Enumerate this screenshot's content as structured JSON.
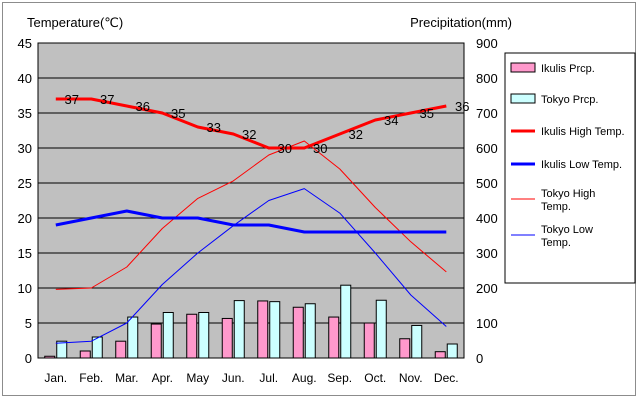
{
  "chart_data": {
    "type": "bar+line",
    "categories": [
      "Jan.",
      "Feb.",
      "Mar.",
      "Apr.",
      "May",
      "Jun.",
      "Jul.",
      "Aug.",
      "Sep.",
      "Oct.",
      "Nov.",
      "Dec."
    ],
    "left_axis": {
      "label": "Temperature(℃)",
      "range": [
        0,
        45
      ],
      "ticks": [
        0,
        5,
        10,
        15,
        20,
        25,
        30,
        35,
        40,
        45
      ]
    },
    "right_axis": {
      "label": "Precipitation(mm)",
      "range": [
        0,
        900
      ],
      "ticks": [
        0,
        100,
        200,
        300,
        400,
        500,
        600,
        700,
        800,
        900
      ]
    },
    "grid": true,
    "legend_position": "right",
    "bar_series": [
      {
        "name": "Ikulis Prcp.",
        "color": "#ff99cc",
        "values": [
          5,
          20,
          48,
          97,
          125,
          113,
          163,
          145,
          117,
          100,
          55,
          18
        ]
      },
      {
        "name": "Tokyo Prcp.",
        "color": "#ccffff",
        "values": [
          48,
          60,
          117,
          130,
          130,
          164,
          161,
          155,
          208,
          165,
          93,
          40
        ]
      }
    ],
    "line_series": [
      {
        "name": "Ikulis High Temp.",
        "color": "#ff0000",
        "width": "thick",
        "values": [
          37,
          37,
          36,
          35,
          33,
          32,
          30,
          30,
          32,
          34,
          35,
          36
        ],
        "labels": [
          "37",
          "37",
          "36",
          "35",
          "33",
          "32",
          "30",
          "30",
          "32",
          "34",
          "35",
          "36"
        ]
      },
      {
        "name": "Ikulis Low Temp.",
        "color": "#0000ff",
        "width": "thick",
        "values": [
          19,
          20,
          21,
          20,
          20,
          19,
          19,
          18,
          18,
          18,
          18,
          18
        ]
      },
      {
        "name": "Tokyo High Temp.",
        "color": "#ff0000",
        "width": "thin",
        "values": [
          9.8,
          10,
          13,
          18.5,
          22.8,
          25.3,
          29,
          31,
          27,
          21.5,
          16.6,
          12.3
        ]
      },
      {
        "name": "Tokyo Low Temp.",
        "color": "#0000ff",
        "width": "thin",
        "values": [
          2.1,
          2.4,
          5,
          10.5,
          15,
          18.9,
          22.5,
          24.2,
          20.7,
          15,
          9,
          4.5
        ]
      }
    ]
  }
}
